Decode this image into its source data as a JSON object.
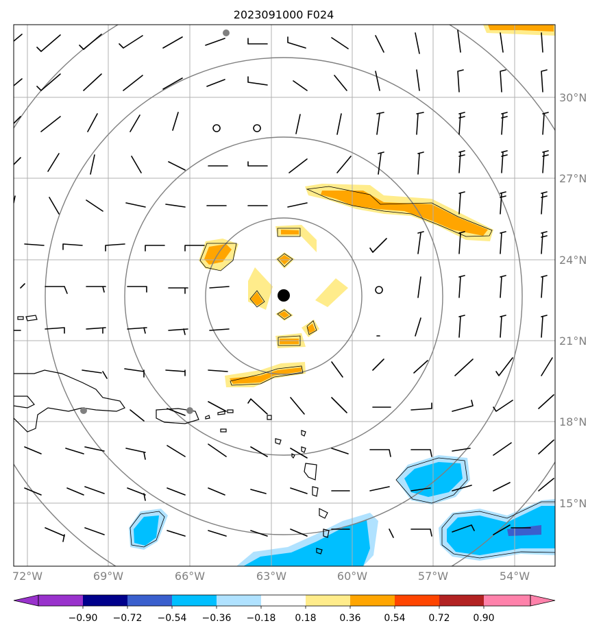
{
  "title": "2023091000 F024",
  "lon_labels": [
    "72°W",
    "69°W",
    "66°W",
    "63°W",
    "60°W",
    "57°W",
    "54°W"
  ],
  "lat_labels": [
    "30°N",
    "27°N",
    "24°N",
    "21°N",
    "18°N",
    "15°N"
  ],
  "colorbar": {
    "ticks": [
      "−0.90",
      "−0.72",
      "−0.54",
      "−0.36",
      "−0.18",
      "0.18",
      "0.36",
      "0.54",
      "0.72",
      "0.90"
    ],
    "colors": [
      "#9932cc",
      "#00008b",
      "#3a5fcd",
      "#00bfff",
      "#b0e2ff",
      "#ffffff",
      "#ffec8b",
      "#ffa500",
      "#ff4500",
      "#b22222",
      "#ff82ab"
    ]
  },
  "colors": {
    "grid": "#b0b0b0",
    "range_rings": "#808080",
    "axis_label": "#808080",
    "center_marker": "#000000"
  }
}
